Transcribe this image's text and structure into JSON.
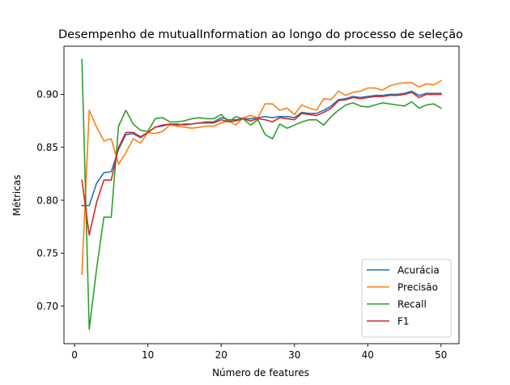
{
  "chart_data": {
    "type": "line",
    "title": "Desempenho de mutualInformation ao longo do processo de seleção",
    "xlabel": "Número de features",
    "ylabel": "Métricas",
    "xlim": [
      -1.45,
      52.45
    ],
    "ylim": [
      0.6645,
      0.9455
    ],
    "xticks": [
      0,
      10,
      20,
      30,
      40,
      50
    ],
    "yticks": [
      0.7,
      0.75,
      0.8,
      0.85,
      0.9
    ],
    "ytick_labels": [
      "0.70",
      "0.75",
      "0.80",
      "0.85",
      "0.90"
    ],
    "grid": false,
    "legend_position": "lower right",
    "x": [
      1,
      2,
      3,
      4,
      5,
      6,
      7,
      8,
      9,
      10,
      11,
      12,
      13,
      14,
      15,
      16,
      17,
      18,
      19,
      20,
      21,
      22,
      23,
      24,
      25,
      26,
      27,
      28,
      29,
      30,
      31,
      32,
      33,
      34,
      35,
      36,
      37,
      38,
      39,
      40,
      41,
      42,
      43,
      44,
      45,
      46,
      47,
      48,
      49,
      50
    ],
    "series": [
      {
        "name": "Acurácia",
        "color": "#1f77b4",
        "values": [
          0.795,
          0.795,
          0.816,
          0.826,
          0.827,
          0.848,
          0.862,
          0.863,
          0.859,
          0.864,
          0.869,
          0.87,
          0.872,
          0.871,
          0.872,
          0.872,
          0.873,
          0.874,
          0.874,
          0.878,
          0.876,
          0.876,
          0.877,
          0.877,
          0.878,
          0.879,
          0.878,
          0.879,
          0.879,
          0.878,
          0.883,
          0.882,
          0.882,
          0.885,
          0.889,
          0.895,
          0.896,
          0.898,
          0.897,
          0.898,
          0.899,
          0.899,
          0.9,
          0.9,
          0.901,
          0.903,
          0.899,
          0.901,
          0.901,
          0.901
        ]
      },
      {
        "name": "Precisão",
        "color": "#ff7f0e",
        "values": [
          0.73,
          0.885,
          0.869,
          0.856,
          0.858,
          0.834,
          0.845,
          0.858,
          0.854,
          0.864,
          0.863,
          0.865,
          0.871,
          0.87,
          0.869,
          0.868,
          0.869,
          0.87,
          0.87,
          0.873,
          0.875,
          0.871,
          0.878,
          0.88,
          0.878,
          0.891,
          0.891,
          0.885,
          0.887,
          0.881,
          0.89,
          0.887,
          0.885,
          0.896,
          0.895,
          0.903,
          0.899,
          0.902,
          0.903,
          0.906,
          0.906,
          0.904,
          0.908,
          0.91,
          0.911,
          0.911,
          0.907,
          0.91,
          0.909,
          0.913
        ]
      },
      {
        "name": "Recall",
        "color": "#2ca02c",
        "values": [
          0.933,
          0.678,
          0.735,
          0.784,
          0.784,
          0.87,
          0.885,
          0.872,
          0.866,
          0.865,
          0.877,
          0.878,
          0.874,
          0.874,
          0.875,
          0.877,
          0.878,
          0.877,
          0.877,
          0.881,
          0.874,
          0.879,
          0.877,
          0.871,
          0.876,
          0.862,
          0.858,
          0.872,
          0.868,
          0.871,
          0.874,
          0.876,
          0.876,
          0.871,
          0.879,
          0.885,
          0.89,
          0.892,
          0.889,
          0.888,
          0.89,
          0.892,
          0.891,
          0.89,
          0.889,
          0.893,
          0.887,
          0.89,
          0.891,
          0.887
        ]
      },
      {
        "name": "F1",
        "color": "#d62728",
        "values": [
          0.819,
          0.767,
          0.798,
          0.819,
          0.819,
          0.85,
          0.864,
          0.864,
          0.86,
          0.864,
          0.869,
          0.871,
          0.872,
          0.872,
          0.871,
          0.872,
          0.873,
          0.873,
          0.873,
          0.876,
          0.874,
          0.875,
          0.877,
          0.875,
          0.877,
          0.876,
          0.874,
          0.878,
          0.877,
          0.876,
          0.882,
          0.881,
          0.88,
          0.883,
          0.887,
          0.894,
          0.895,
          0.897,
          0.896,
          0.897,
          0.898,
          0.898,
          0.899,
          0.899,
          0.9,
          0.902,
          0.897,
          0.9,
          0.9,
          0.9
        ]
      }
    ]
  }
}
